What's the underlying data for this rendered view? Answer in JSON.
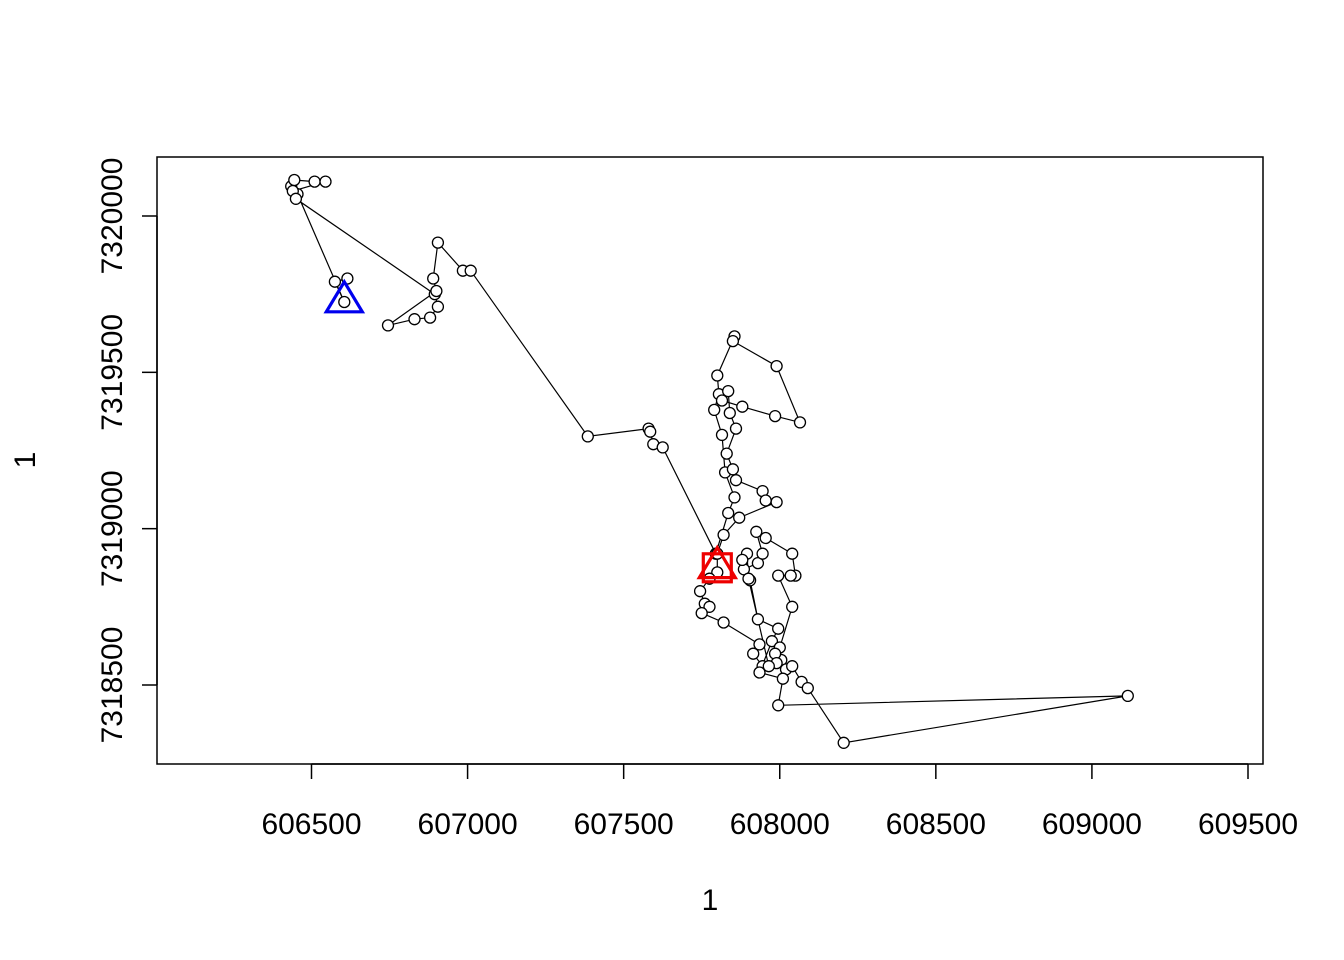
{
  "chart_data": {
    "type": "scatter",
    "title": "",
    "xlabel": "1",
    "ylabel": "1",
    "xlim": [
      606000,
      609550
    ],
    "ylim": [
      7318250,
      7320200
    ],
    "x_ticks": [
      606500,
      607000,
      607500,
      608000,
      608500,
      609000,
      609500
    ],
    "x_tick_labels": [
      "606500",
      "607000",
      "607500",
      "608000",
      "608500",
      "609000",
      "609500"
    ],
    "y_ticks": [
      7318500,
      7319000,
      7319500,
      7320000
    ],
    "y_tick_labels": [
      "7318500",
      "7319000",
      "7319500",
      "7320000"
    ],
    "grid": false,
    "legend": "none",
    "series": [
      {
        "style": "lines+points",
        "line_color": "#000000",
        "point_fill": "#ffffff",
        "points": [
          [
            606615,
            7319800
          ],
          [
            606575,
            7319790
          ],
          [
            606605,
            7319725
          ],
          [
            606455,
            7320070
          ],
          [
            606435,
            7320095
          ],
          [
            606445,
            7320115
          ],
          [
            606510,
            7320110
          ],
          [
            606545,
            7320110
          ],
          [
            606440,
            7320080
          ],
          [
            606450,
            7320055
          ],
          [
            606895,
            7319750
          ],
          [
            606905,
            7319710
          ],
          [
            606880,
            7319675
          ],
          [
            606830,
            7319670
          ],
          [
            606745,
            7319650
          ],
          [
            606900,
            7319760
          ],
          [
            606890,
            7319800
          ],
          [
            606905,
            7319915
          ],
          [
            606985,
            7319825
          ],
          [
            607010,
            7319825
          ],
          [
            607385,
            7319295
          ],
          [
            607580,
            7319320
          ],
          [
            607585,
            7319310
          ],
          [
            607595,
            7319270
          ],
          [
            607625,
            7319260
          ],
          [
            607795,
            7318920
          ],
          [
            607835,
            7319050
          ],
          [
            607855,
            7319100
          ],
          [
            607825,
            7319180
          ],
          [
            607815,
            7319300
          ],
          [
            607790,
            7319380
          ],
          [
            607805,
            7319430
          ],
          [
            607800,
            7319490
          ],
          [
            607855,
            7319615
          ],
          [
            607850,
            7319600
          ],
          [
            607990,
            7319520
          ],
          [
            608065,
            7319340
          ],
          [
            607985,
            7319360
          ],
          [
            607880,
            7319390
          ],
          [
            607815,
            7319410
          ],
          [
            607835,
            7319440
          ],
          [
            607840,
            7319370
          ],
          [
            607860,
            7319320
          ],
          [
            607830,
            7319240
          ],
          [
            607850,
            7319190
          ],
          [
            607860,
            7319155
          ],
          [
            607945,
            7319120
          ],
          [
            607955,
            7319090
          ],
          [
            607990,
            7319085
          ],
          [
            607870,
            7319035
          ],
          [
            607820,
            7318980
          ],
          [
            607800,
            7318920
          ],
          [
            607800,
            7318860
          ],
          [
            607775,
            7318840
          ],
          [
            607745,
            7318800
          ],
          [
            607760,
            7318760
          ],
          [
            607775,
            7318750
          ],
          [
            607750,
            7318730
          ],
          [
            607820,
            7318700
          ],
          [
            607935,
            7318630
          ],
          [
            607915,
            7318600
          ],
          [
            607945,
            7318560
          ],
          [
            608005,
            7318580
          ],
          [
            608020,
            7318550
          ],
          [
            608040,
            7318560
          ],
          [
            608070,
            7318510
          ],
          [
            608090,
            7318490
          ],
          [
            608205,
            7318315
          ],
          [
            609115,
            7318465
          ],
          [
            607995,
            7318435
          ],
          [
            608010,
            7318520
          ],
          [
            607935,
            7318540
          ],
          [
            607975,
            7318640
          ],
          [
            607995,
            7318680
          ],
          [
            607930,
            7318710
          ],
          [
            607905,
            7318835
          ],
          [
            607885,
            7318870
          ],
          [
            607930,
            7318890
          ],
          [
            607945,
            7318920
          ],
          [
            607925,
            7318990
          ],
          [
            607955,
            7318970
          ],
          [
            608040,
            7318920
          ],
          [
            608050,
            7318850
          ],
          [
            608035,
            7318850
          ],
          [
            607995,
            7318850
          ],
          [
            608040,
            7318750
          ],
          [
            608000,
            7318620
          ],
          [
            607985,
            7318600
          ],
          [
            607990,
            7318570
          ],
          [
            607965,
            7318560
          ],
          [
            607900,
            7318840
          ],
          [
            607895,
            7318920
          ],
          [
            607880,
            7318900
          ]
        ]
      }
    ],
    "markers": [
      {
        "shape": "triangle",
        "color": "#0000ee",
        "x": 606605,
        "y": 7319730
      },
      {
        "shape": "square",
        "color": "#ee0000",
        "x": 607800,
        "y": 7318875
      },
      {
        "shape": "triangle",
        "color": "#ee0000",
        "x": 607800,
        "y": 7318880
      }
    ]
  }
}
